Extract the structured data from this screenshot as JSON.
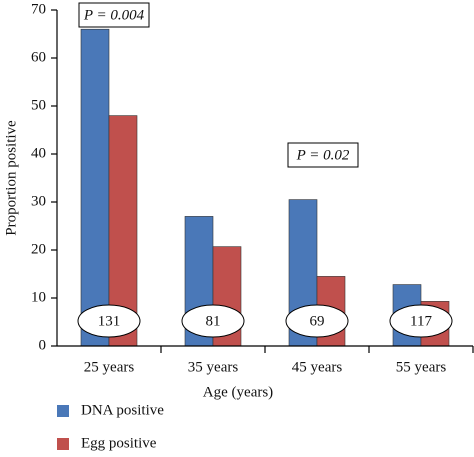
{
  "chart_data": {
    "type": "bar",
    "x_label": "Age (years)",
    "y_label": "Proportion positive",
    "categories": [
      "25 years",
      "35 years",
      "45 years",
      "55 years"
    ],
    "series": [
      {
        "name": "DNA positive",
        "color": "#4a78b8",
        "values": [
          66,
          27,
          30.5,
          12.8
        ]
      },
      {
        "name": "Egg positive",
        "color": "#c0504d",
        "values": [
          48,
          20.7,
          14.5,
          9.3
        ]
      }
    ],
    "sample_sizes": [
      131,
      81,
      69,
      117
    ],
    "annotations": [
      "P = 0.004",
      "P = 0.02"
    ],
    "ylim": [
      0,
      70
    ],
    "yticks": [
      0,
      10,
      20,
      30,
      40,
      50,
      60,
      70
    ]
  }
}
